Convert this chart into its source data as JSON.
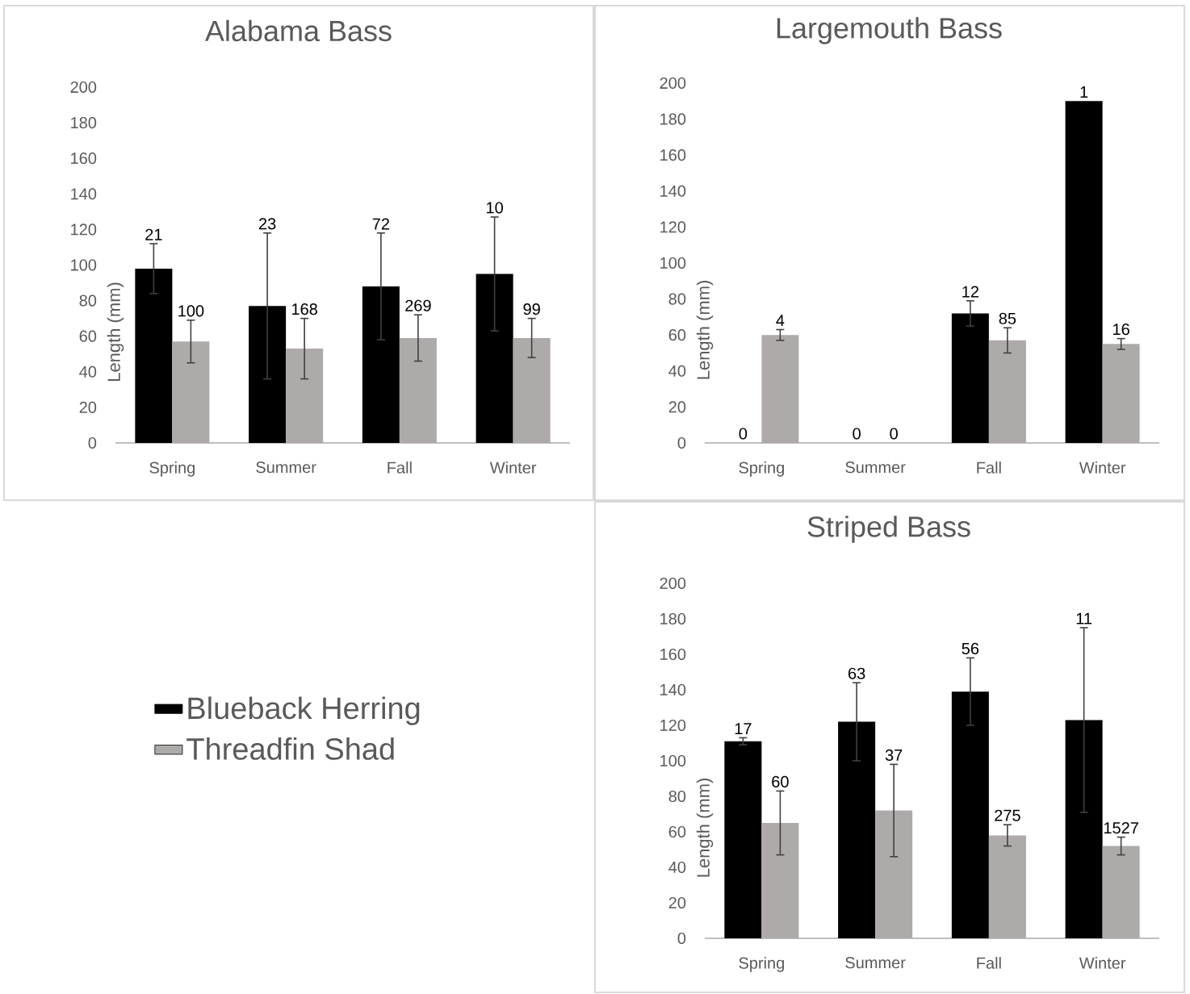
{
  "chart_data": [
    {
      "type": "bar",
      "title": "Alabama Bass",
      "ylabel": "Length (mm)",
      "categories": [
        "Spring",
        "Summer",
        "Fall",
        "Winter"
      ],
      "ylim": [
        0,
        200
      ],
      "yticks": [
        0,
        20,
        40,
        60,
        80,
        100,
        120,
        140,
        160,
        180,
        200
      ],
      "legend": "bottom",
      "series": [
        {
          "name": "Blueback Herring",
          "color": "#000000",
          "values": [
            98,
            77,
            88,
            95
          ],
          "errors": [
            14,
            41,
            30,
            32
          ]
        },
        {
          "name": "Threadfin Shad",
          "color": "#aeaaaa",
          "values": [
            57,
            53,
            59,
            59
          ],
          "errors": [
            12,
            17,
            13,
            11
          ]
        }
      ],
      "annotations": [
        "21",
        "100",
        "23",
        "168",
        "72",
        "269",
        "10",
        "99"
      ]
    },
    {
      "type": "bar",
      "title": "Largemouth Bass",
      "ylabel": "Length (mm)",
      "categories": [
        "Spring",
        "Summer",
        "Fall",
        "Winter"
      ],
      "ylim": [
        0,
        200
      ],
      "yticks": [
        0,
        20,
        40,
        60,
        80,
        100,
        120,
        140,
        160,
        180,
        200
      ],
      "series": [
        {
          "color": "#000000",
          "values": [
            0,
            0,
            72,
            190
          ],
          "errors": [
            null,
            null,
            7,
            null
          ]
        },
        {
          "color": "#aeaaaa",
          "values": [
            60,
            0,
            57,
            55
          ],
          "errors": [
            3,
            null,
            7,
            3
          ]
        }
      ],
      "annotations": [
        "0",
        "4",
        "0",
        "0",
        "12",
        "85",
        "1",
        "16"
      ]
    },
    {
      "type": "bar",
      "title": "Striped Bass",
      "ylabel": "Length (mm)",
      "categories": [
        "Spring",
        "Summer",
        "Fall",
        "Winter"
      ],
      "ylim": [
        0,
        200
      ],
      "yticks": [
        0,
        20,
        40,
        60,
        80,
        100,
        120,
        140,
        160,
        180,
        200
      ],
      "series": [
        {
          "color": "#000000",
          "values": [
            111,
            122,
            139,
            123
          ],
          "errors": [
            2,
            22,
            19,
            52
          ]
        },
        {
          "color": "#aeaaaa",
          "values": [
            65,
            72,
            58,
            52
          ],
          "errors": [
            18,
            26,
            6,
            5
          ]
        }
      ],
      "annotations": [
        "17",
        "60",
        "63",
        "37",
        "56",
        "275",
        "11",
        "1527"
      ]
    }
  ]
}
